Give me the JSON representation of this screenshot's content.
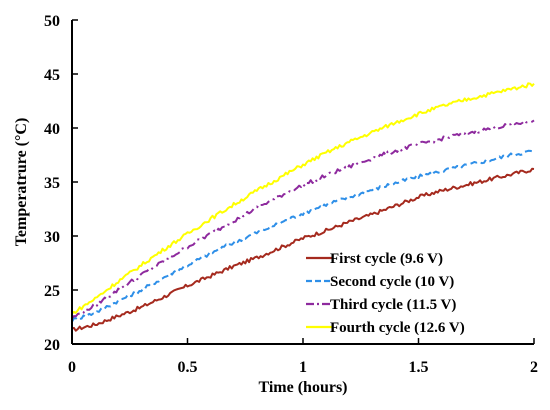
{
  "chart_data": {
    "type": "line",
    "title": "",
    "xlabel": "Time (hours)",
    "ylabel": "Temperatrure (°C)",
    "xlim": [
      0,
      2
    ],
    "ylim": [
      20,
      50
    ],
    "xticks": [
      0,
      0.5,
      1,
      1.5,
      2
    ],
    "xtick_labels": [
      "0",
      "0.5",
      "1",
      "1.5",
      "2"
    ],
    "yticks": [
      20,
      25,
      30,
      35,
      40,
      45,
      50
    ],
    "ytick_labels": [
      "20",
      "25",
      "30",
      "35",
      "40",
      "45",
      "50"
    ],
    "grid": false,
    "legend_position": "bottom-right",
    "x": [
      0,
      0.1,
      0.2,
      0.3,
      0.4,
      0.5,
      0.6,
      0.7,
      0.8,
      0.9,
      1.0,
      1.1,
      1.2,
      1.3,
      1.4,
      1.5,
      1.6,
      1.7,
      1.8,
      1.9,
      2.0
    ],
    "series": [
      {
        "name": "First cycle (9.6 V)",
        "color": "#a52a1e",
        "dash": "solid",
        "values": [
          21.3,
          21.8,
          22.6,
          23.4,
          24.4,
          25.4,
          26.3,
          27.2,
          28.0,
          28.9,
          29.8,
          30.5,
          31.3,
          32.0,
          32.8,
          33.6,
          34.2,
          34.7,
          35.2,
          35.7,
          36.2
        ]
      },
      {
        "name": "Second cycle (10 V)",
        "color": "#2e8fe8",
        "dash": "dashed",
        "values": [
          22.2,
          22.9,
          24.0,
          25.0,
          26.2,
          27.3,
          28.4,
          29.4,
          30.3,
          31.2,
          32.1,
          32.9,
          33.6,
          34.3,
          34.9,
          35.5,
          36.0,
          36.5,
          37.0,
          37.5,
          37.9
        ]
      },
      {
        "name": "Third cycle (11.5 V)",
        "color": "#8e2a9e",
        "dash": "dashdot",
        "values": [
          22.4,
          23.6,
          25.0,
          26.4,
          27.7,
          29.0,
          30.2,
          31.4,
          32.6,
          33.7,
          34.7,
          35.6,
          36.4,
          37.2,
          37.9,
          38.5,
          39.0,
          39.5,
          39.9,
          40.3,
          40.7
        ]
      },
      {
        "name": "Fourth cycle (12.6 V)",
        "color": "#ffff00",
        "dash": "solid",
        "values": [
          22.8,
          24.2,
          25.8,
          27.3,
          28.8,
          30.2,
          31.6,
          32.9,
          34.2,
          35.4,
          36.6,
          37.7,
          38.7,
          39.6,
          40.5,
          41.3,
          42.0,
          42.6,
          43.1,
          43.6,
          44.1
        ]
      }
    ]
  }
}
